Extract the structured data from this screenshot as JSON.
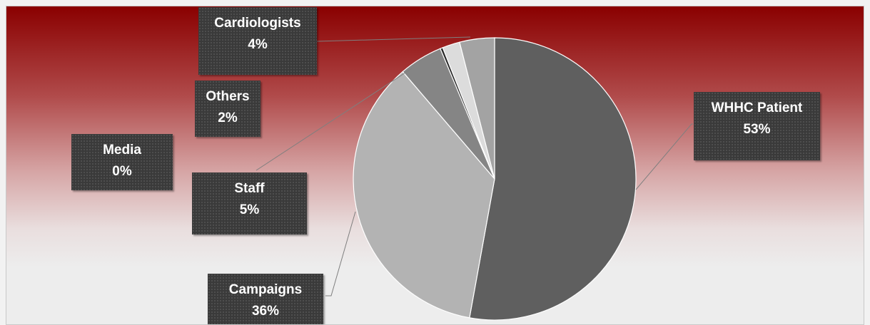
{
  "chart_data": {
    "type": "pie",
    "title": "",
    "slices": [
      {
        "label": "WHHC Patient",
        "percent_label": "53%",
        "value": 53,
        "color": "#5f5f5f"
      },
      {
        "label": "Campaigns",
        "percent_label": "36%",
        "value": 36,
        "color": "#b3b3b3"
      },
      {
        "label": "Staff",
        "percent_label": "5%",
        "value": 5,
        "color": "#858585"
      },
      {
        "label": "Media",
        "percent_label": "0%",
        "value": 0.3,
        "color": "#2a2a2a"
      },
      {
        "label": "Others",
        "percent_label": "2%",
        "value": 2,
        "color": "#dcdcdc"
      },
      {
        "label": "Cardiologists",
        "percent_label": "4%",
        "value": 4,
        "color": "#a3a3a3"
      }
    ]
  }
}
